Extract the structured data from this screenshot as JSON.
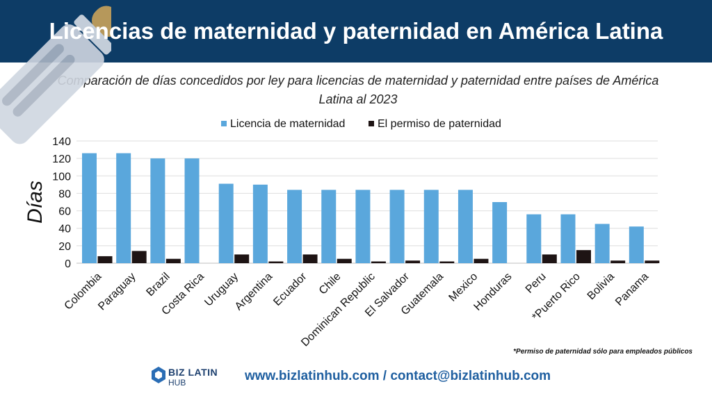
{
  "header": {
    "title": "Licencias de maternidad y paternidad en América Latina"
  },
  "subtitle": "Comparación de días concedidos por ley para licencias de maternidad y paternidad entre países de América Latina al 2023",
  "footnote": "*Permiso de paternidad sólo para empleados públicos",
  "logo": {
    "line1": "BIZ LATIN",
    "line2": "HUB"
  },
  "contact": "www.bizlatinhub.com / contact@bizlatinhub.com",
  "colors": {
    "banner": "#0d3c66",
    "maternity": "#5aa7dc",
    "paternity": "#1e1414"
  },
  "chart_data": {
    "type": "bar",
    "title": "",
    "xlabel": "",
    "ylabel": "Días",
    "ylim": [
      0,
      140
    ],
    "yticks": [
      0,
      20,
      40,
      60,
      80,
      100,
      120,
      140
    ],
    "grid": true,
    "legend_position": "top",
    "categories": [
      "Colombia",
      "Paraguay",
      "Brazil",
      "Costa Rica",
      "Uruguay",
      "Argentina",
      "Ecuador",
      "Chile",
      "Dominican Republic",
      "El Salvador",
      "Guatemala",
      "Mexico",
      "Honduras",
      "Peru",
      "*Puerto Rico",
      "Bolivia",
      "Panama"
    ],
    "series": [
      {
        "name": "Licencia de maternidad",
        "color": "#5aa7dc",
        "values": [
          126,
          126,
          120,
          120,
          91,
          90,
          84,
          84,
          84,
          84,
          84,
          84,
          70,
          56,
          56,
          45,
          42
        ]
      },
      {
        "name": "El permiso de paternidad",
        "color": "#1e1414",
        "values": [
          8,
          14,
          5,
          0,
          10,
          2,
          10,
          5,
          2,
          3,
          2,
          5,
          0,
          10,
          15,
          3,
          3
        ]
      }
    ]
  }
}
